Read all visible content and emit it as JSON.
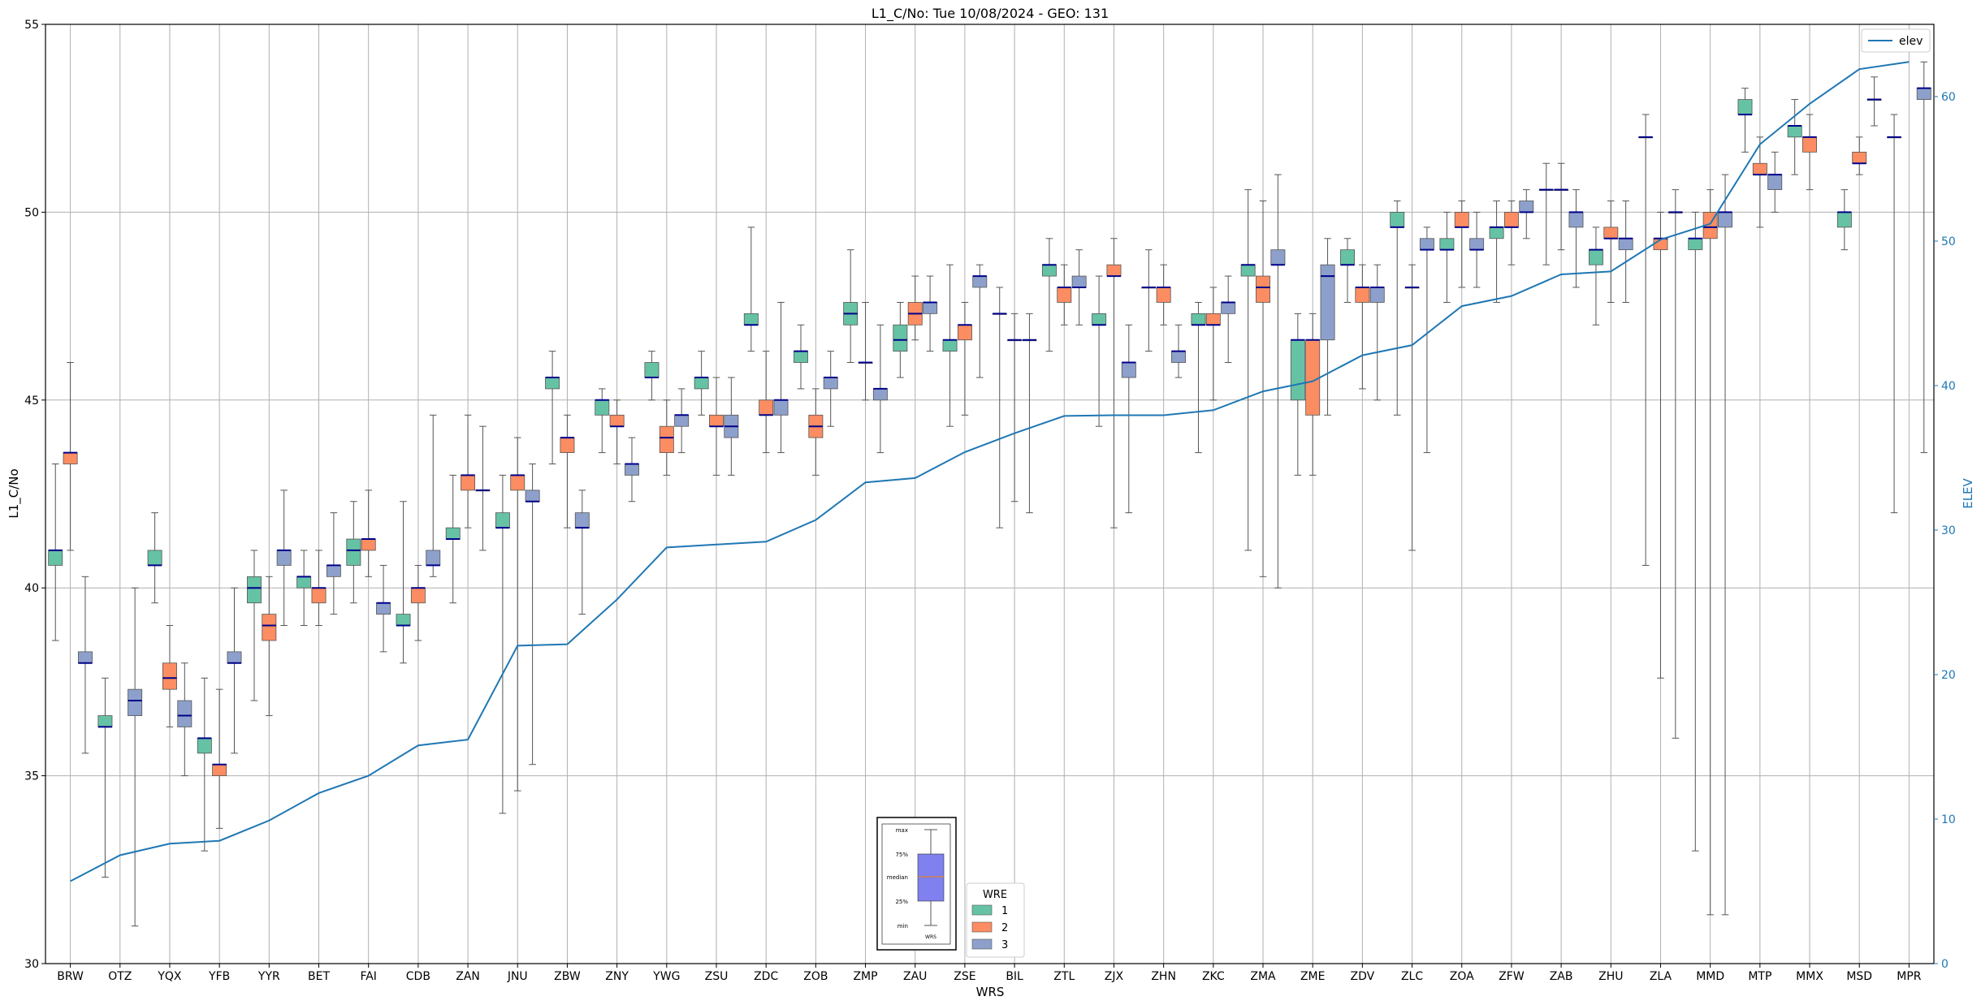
{
  "chart_data": {
    "type": "box",
    "title": "L1_C/No: Tue 10/08/2024 - GEO: 131",
    "xlabel": "WRS",
    "ylabel": "L1_C/No",
    "y2label": "ELEV",
    "ylim": [
      30,
      55
    ],
    "y2lim": [
      0,
      65
    ],
    "yticks": [
      "30",
      "35",
      "40",
      "45",
      "50",
      "55"
    ],
    "y2ticks": [
      "0",
      "10",
      "20",
      "30",
      "40",
      "50",
      "60"
    ],
    "grid": true,
    "colors": {
      "1": "#66c2a5",
      "2": "#fc8d62",
      "3": "#8da0cb",
      "elev": "#1f77b4",
      "median": "#00008b"
    },
    "categories": [
      "BRW",
      "OTZ",
      "YQX",
      "YFB",
      "YYR",
      "BET",
      "FAI",
      "CDB",
      "ZAN",
      "JNU",
      "ZBW",
      "ZNY",
      "YWG",
      "ZSU",
      "ZDC",
      "ZOB",
      "ZMP",
      "ZAU",
      "ZSE",
      "BIL",
      "ZTL",
      "ZJX",
      "ZHN",
      "ZKC",
      "ZMA",
      "ZME",
      "ZDV",
      "ZLC",
      "ZOA",
      "ZFW",
      "ZAB",
      "ZHU",
      "ZLA",
      "MMD",
      "MTP",
      "MMX",
      "MSD",
      "MPR"
    ],
    "elev_legend": "elev",
    "elev": [
      5.7,
      7.5,
      8.3,
      8.5,
      9.9,
      11.8,
      13.0,
      15.1,
      15.5,
      22.0,
      22.1,
      25.2,
      28.8,
      29.0,
      29.2,
      30.7,
      33.3,
      33.6,
      35.4,
      36.7,
      37.9,
      37.95,
      37.95,
      38.3,
      39.6,
      40.3,
      42.1,
      42.8,
      45.5,
      46.2,
      47.7,
      47.9,
      50.1,
      51.2,
      56.7,
      59.5,
      61.9,
      62.4
    ],
    "legend": {
      "title": "WRE",
      "entries": [
        "1",
        "2",
        "3"
      ]
    },
    "inset_legend": {
      "labels": [
        "max",
        "75%",
        "median",
        "25%",
        "min"
      ],
      "xlabel": "WRS"
    },
    "boxes": [
      {
        "cat": "BRW",
        "wre": "1",
        "min": 38.6,
        "q1": 40.6,
        "med": 41.0,
        "q3": 41.0,
        "max": 43.3
      },
      {
        "cat": "BRW",
        "wre": "2",
        "min": 41.0,
        "q1": 43.3,
        "med": 43.6,
        "q3": 43.6,
        "max": 46.0
      },
      {
        "cat": "BRW",
        "wre": "3",
        "min": 35.6,
        "q1": 38.0,
        "med": 38.0,
        "q3": 38.3,
        "max": 40.3
      },
      {
        "cat": "OTZ",
        "wre": "1",
        "min": 32.3,
        "q1": 36.3,
        "med": 36.3,
        "q3": 36.6,
        "max": 37.6
      },
      {
        "cat": "OTZ",
        "wre": "3",
        "min": 31.0,
        "q1": 36.6,
        "med": 37.0,
        "q3": 37.3,
        "max": 40.0
      },
      {
        "cat": "YQX",
        "wre": "1",
        "min": 39.6,
        "q1": 40.6,
        "med": 40.6,
        "q3": 41.0,
        "max": 42.0
      },
      {
        "cat": "YQX",
        "wre": "2",
        "min": 36.3,
        "q1": 37.3,
        "med": 37.6,
        "q3": 38.0,
        "max": 39.0
      },
      {
        "cat": "YQX",
        "wre": "3",
        "min": 35.0,
        "q1": 36.3,
        "med": 36.6,
        "q3": 37.0,
        "max": 38.0
      },
      {
        "cat": "YFB",
        "wre": "1",
        "min": 33.0,
        "q1": 35.6,
        "med": 36.0,
        "q3": 36.0,
        "max": 37.6
      },
      {
        "cat": "YFB",
        "wre": "2",
        "min": 33.6,
        "q1": 35.0,
        "med": 35.3,
        "q3": 35.3,
        "max": 37.3
      },
      {
        "cat": "YFB",
        "wre": "3",
        "min": 35.6,
        "q1": 38.0,
        "med": 38.0,
        "q3": 38.3,
        "max": 40.0
      },
      {
        "cat": "YYR",
        "wre": "1",
        "min": 37.0,
        "q1": 39.6,
        "med": 40.0,
        "q3": 40.3,
        "max": 41.0
      },
      {
        "cat": "YYR",
        "wre": "2",
        "min": 36.6,
        "q1": 38.6,
        "med": 39.0,
        "q3": 39.3,
        "max": 40.3
      },
      {
        "cat": "YYR",
        "wre": "3",
        "min": 39.0,
        "q1": 40.6,
        "med": 41.0,
        "q3": 41.0,
        "max": 42.6
      },
      {
        "cat": "BET",
        "wre": "1",
        "min": 39.0,
        "q1": 40.0,
        "med": 40.3,
        "q3": 40.3,
        "max": 41.0
      },
      {
        "cat": "BET",
        "wre": "2",
        "min": 39.0,
        "q1": 39.6,
        "med": 40.0,
        "q3": 40.0,
        "max": 41.0
      },
      {
        "cat": "BET",
        "wre": "3",
        "min": 39.3,
        "q1": 40.3,
        "med": 40.6,
        "q3": 40.6,
        "max": 42.0
      },
      {
        "cat": "FAI",
        "wre": "1",
        "min": 39.6,
        "q1": 40.6,
        "med": 41.0,
        "q3": 41.3,
        "max": 42.3
      },
      {
        "cat": "FAI",
        "wre": "2",
        "min": 40.3,
        "q1": 41.0,
        "med": 41.3,
        "q3": 41.3,
        "max": 42.6
      },
      {
        "cat": "FAI",
        "wre": "3",
        "min": 38.3,
        "q1": 39.3,
        "med": 39.6,
        "q3": 39.6,
        "max": 40.6
      },
      {
        "cat": "CDB",
        "wre": "1",
        "min": 38.0,
        "q1": 39.0,
        "med": 39.0,
        "q3": 39.3,
        "max": 42.3
      },
      {
        "cat": "CDB",
        "wre": "2",
        "min": 38.6,
        "q1": 39.6,
        "med": 40.0,
        "q3": 40.0,
        "max": 40.6
      },
      {
        "cat": "CDB",
        "wre": "3",
        "min": 40.3,
        "q1": 40.6,
        "med": 40.6,
        "q3": 41.0,
        "max": 44.6
      },
      {
        "cat": "ZAN",
        "wre": "1",
        "min": 39.6,
        "q1": 41.3,
        "med": 41.3,
        "q3": 41.6,
        "max": 43.0
      },
      {
        "cat": "ZAN",
        "wre": "2",
        "min": 41.6,
        "q1": 42.6,
        "med": 43.0,
        "q3": 43.0,
        "max": 44.6
      },
      {
        "cat": "ZAN",
        "wre": "3",
        "min": 41.0,
        "q1": 42.6,
        "med": 42.6,
        "q3": 42.6,
        "max": 44.3
      },
      {
        "cat": "JNU",
        "wre": "1",
        "min": 34.0,
        "q1": 41.6,
        "med": 41.6,
        "q3": 42.0,
        "max": 43.0
      },
      {
        "cat": "JNU",
        "wre": "2",
        "min": 34.6,
        "q1": 42.6,
        "med": 43.0,
        "q3": 43.0,
        "max": 44.0
      },
      {
        "cat": "JNU",
        "wre": "3",
        "min": 35.3,
        "q1": 42.3,
        "med": 42.3,
        "q3": 42.6,
        "max": 43.3
      },
      {
        "cat": "ZBW",
        "wre": "1",
        "min": 43.3,
        "q1": 45.3,
        "med": 45.6,
        "q3": 45.6,
        "max": 46.3
      },
      {
        "cat": "ZBW",
        "wre": "2",
        "min": 41.6,
        "q1": 43.6,
        "med": 44.0,
        "q3": 44.0,
        "max": 44.6
      },
      {
        "cat": "ZBW",
        "wre": "3",
        "min": 39.3,
        "q1": 41.6,
        "med": 41.6,
        "q3": 42.0,
        "max": 42.6
      },
      {
        "cat": "ZNY",
        "wre": "1",
        "min": 43.6,
        "q1": 44.6,
        "med": 45.0,
        "q3": 45.0,
        "max": 45.3
      },
      {
        "cat": "ZNY",
        "wre": "2",
        "min": 43.3,
        "q1": 44.3,
        "med": 44.3,
        "q3": 44.6,
        "max": 45.0
      },
      {
        "cat": "ZNY",
        "wre": "3",
        "min": 42.3,
        "q1": 43.0,
        "med": 43.3,
        "q3": 43.3,
        "max": 44.0
      },
      {
        "cat": "YWG",
        "wre": "1",
        "min": 45.0,
        "q1": 45.6,
        "med": 45.6,
        "q3": 46.0,
        "max": 46.3
      },
      {
        "cat": "YWG",
        "wre": "2",
        "min": 43.0,
        "q1": 43.6,
        "med": 44.0,
        "q3": 44.3,
        "max": 45.0
      },
      {
        "cat": "YWG",
        "wre": "3",
        "min": 43.6,
        "q1": 44.3,
        "med": 44.6,
        "q3": 44.6,
        "max": 45.3
      },
      {
        "cat": "ZSU",
        "wre": "1",
        "min": 44.6,
        "q1": 45.3,
        "med": 45.6,
        "q3": 45.6,
        "max": 46.3
      },
      {
        "cat": "ZSU",
        "wre": "2",
        "min": 43.0,
        "q1": 44.3,
        "med": 44.3,
        "q3": 44.6,
        "max": 45.6
      },
      {
        "cat": "ZSU",
        "wre": "3",
        "min": 43.0,
        "q1": 44.0,
        "med": 44.3,
        "q3": 44.6,
        "max": 45.6
      },
      {
        "cat": "ZDC",
        "wre": "1",
        "min": 46.3,
        "q1": 47.0,
        "med": 47.0,
        "q3": 47.3,
        "max": 49.6
      },
      {
        "cat": "ZDC",
        "wre": "2",
        "min": 43.6,
        "q1": 44.6,
        "med": 44.6,
        "q3": 45.0,
        "max": 46.3
      },
      {
        "cat": "ZDC",
        "wre": "3",
        "min": 43.6,
        "q1": 44.6,
        "med": 45.0,
        "q3": 45.0,
        "max": 47.6
      },
      {
        "cat": "ZOB",
        "wre": "1",
        "min": 45.3,
        "q1": 46.0,
        "med": 46.3,
        "q3": 46.3,
        "max": 47.0
      },
      {
        "cat": "ZOB",
        "wre": "2",
        "min": 43.0,
        "q1": 44.0,
        "med": 44.3,
        "q3": 44.6,
        "max": 45.3
      },
      {
        "cat": "ZOB",
        "wre": "3",
        "min": 44.3,
        "q1": 45.3,
        "med": 45.6,
        "q3": 45.6,
        "max": 46.3
      },
      {
        "cat": "ZMP",
        "wre": "1",
        "min": 46.0,
        "q1": 47.0,
        "med": 47.3,
        "q3": 47.6,
        "max": 49.0
      },
      {
        "cat": "ZMP",
        "wre": "2",
        "min": 45.0,
        "q1": 46.0,
        "med": 46.0,
        "q3": 46.0,
        "max": 47.6
      },
      {
        "cat": "ZMP",
        "wre": "3",
        "min": 43.6,
        "q1": 45.0,
        "med": 45.3,
        "q3": 45.3,
        "max": 47.0
      },
      {
        "cat": "ZAU",
        "wre": "1",
        "min": 45.6,
        "q1": 46.3,
        "med": 46.6,
        "q3": 47.0,
        "max": 47.6
      },
      {
        "cat": "ZAU",
        "wre": "2",
        "min": 46.6,
        "q1": 47.0,
        "med": 47.3,
        "q3": 47.6,
        "max": 48.3
      },
      {
        "cat": "ZAU",
        "wre": "3",
        "min": 46.3,
        "q1": 47.3,
        "med": 47.6,
        "q3": 47.6,
        "max": 48.3
      },
      {
        "cat": "ZSE",
        "wre": "1",
        "min": 44.3,
        "q1": 46.3,
        "med": 46.6,
        "q3": 46.6,
        "max": 48.6
      },
      {
        "cat": "ZSE",
        "wre": "2",
        "min": 44.6,
        "q1": 46.6,
        "med": 47.0,
        "q3": 47.0,
        "max": 47.6
      },
      {
        "cat": "ZSE",
        "wre": "3",
        "min": 45.6,
        "q1": 48.0,
        "med": 48.3,
        "q3": 48.3,
        "max": 48.6
      },
      {
        "cat": "BIL",
        "wre": "1",
        "min": 41.6,
        "q1": 47.3,
        "med": 47.3,
        "q3": 47.3,
        "max": 48.0
      },
      {
        "cat": "BIL",
        "wre": "2",
        "min": 42.3,
        "q1": 46.6,
        "med": 46.6,
        "q3": 46.6,
        "max": 47.3
      },
      {
        "cat": "BIL",
        "wre": "3",
        "min": 42.0,
        "q1": 46.6,
        "med": 46.6,
        "q3": 46.6,
        "max": 47.3
      },
      {
        "cat": "ZTL",
        "wre": "1",
        "min": 46.3,
        "q1": 48.3,
        "med": 48.6,
        "q3": 48.6,
        "max": 49.3
      },
      {
        "cat": "ZTL",
        "wre": "2",
        "min": 47.0,
        "q1": 47.6,
        "med": 48.0,
        "q3": 48.0,
        "max": 48.6
      },
      {
        "cat": "ZTL",
        "wre": "3",
        "min": 47.0,
        "q1": 48.0,
        "med": 48.0,
        "q3": 48.3,
        "max": 49.0
      },
      {
        "cat": "ZJX",
        "wre": "1",
        "min": 44.3,
        "q1": 47.0,
        "med": 47.0,
        "q3": 47.3,
        "max": 48.3
      },
      {
        "cat": "ZJX",
        "wre": "2",
        "min": 41.6,
        "q1": 48.3,
        "med": 48.3,
        "q3": 48.6,
        "max": 49.3
      },
      {
        "cat": "ZJX",
        "wre": "3",
        "min": 42.0,
        "q1": 45.6,
        "med": 46.0,
        "q3": 46.0,
        "max": 47.0
      },
      {
        "cat": "ZHN",
        "wre": "1",
        "min": 46.3,
        "q1": 48.0,
        "med": 48.0,
        "q3": 48.0,
        "max": 49.0
      },
      {
        "cat": "ZHN",
        "wre": "2",
        "min": 47.0,
        "q1": 47.6,
        "med": 48.0,
        "q3": 48.0,
        "max": 48.6
      },
      {
        "cat": "ZHN",
        "wre": "3",
        "min": 45.6,
        "q1": 46.0,
        "med": 46.3,
        "q3": 46.3,
        "max": 47.0
      },
      {
        "cat": "ZKC",
        "wre": "1",
        "min": 43.6,
        "q1": 47.0,
        "med": 47.0,
        "q3": 47.3,
        "max": 47.6
      },
      {
        "cat": "ZKC",
        "wre": "2",
        "min": 45.0,
        "q1": 47.0,
        "med": 47.0,
        "q3": 47.3,
        "max": 48.0
      },
      {
        "cat": "ZKC",
        "wre": "3",
        "min": 46.0,
        "q1": 47.3,
        "med": 47.6,
        "q3": 47.6,
        "max": 48.3
      },
      {
        "cat": "ZMA",
        "wre": "1",
        "min": 41.0,
        "q1": 48.3,
        "med": 48.6,
        "q3": 48.6,
        "max": 50.6
      },
      {
        "cat": "ZMA",
        "wre": "2",
        "min": 40.3,
        "q1": 47.6,
        "med": 48.0,
        "q3": 48.3,
        "max": 50.3
      },
      {
        "cat": "ZMA",
        "wre": "3",
        "min": 40.0,
        "q1": 48.6,
        "med": 48.6,
        "q3": 49.0,
        "max": 51.0
      },
      {
        "cat": "ZME",
        "wre": "1",
        "min": 43.0,
        "q1": 45.0,
        "med": 46.6,
        "q3": 46.6,
        "max": 47.3
      },
      {
        "cat": "ZME",
        "wre": "2",
        "min": 43.0,
        "q1": 44.6,
        "med": 46.6,
        "q3": 46.6,
        "max": 47.3
      },
      {
        "cat": "ZME",
        "wre": "3",
        "min": 44.6,
        "q1": 46.6,
        "med": 48.3,
        "q3": 48.6,
        "max": 49.3
      },
      {
        "cat": "ZDV",
        "wre": "1",
        "min": 47.6,
        "q1": 48.6,
        "med": 48.6,
        "q3": 49.0,
        "max": 49.3
      },
      {
        "cat": "ZDV",
        "wre": "2",
        "min": 45.3,
        "q1": 47.6,
        "med": 48.0,
        "q3": 48.0,
        "max": 48.6
      },
      {
        "cat": "ZDV",
        "wre": "3",
        "min": 45.0,
        "q1": 47.6,
        "med": 48.0,
        "q3": 48.0,
        "max": 48.6
      },
      {
        "cat": "ZLC",
        "wre": "1",
        "min": 44.6,
        "q1": 49.6,
        "med": 49.6,
        "q3": 50.0,
        "max": 50.3
      },
      {
        "cat": "ZLC",
        "wre": "2",
        "min": 41.0,
        "q1": 48.0,
        "med": 48.0,
        "q3": 48.0,
        "max": 48.6
      },
      {
        "cat": "ZLC",
        "wre": "3",
        "min": 43.6,
        "q1": 49.0,
        "med": 49.0,
        "q3": 49.3,
        "max": 49.6
      },
      {
        "cat": "ZOA",
        "wre": "1",
        "min": 47.6,
        "q1": 49.0,
        "med": 49.0,
        "q3": 49.3,
        "max": 50.0
      },
      {
        "cat": "ZOA",
        "wre": "2",
        "min": 48.0,
        "q1": 49.6,
        "med": 49.6,
        "q3": 50.0,
        "max": 50.3
      },
      {
        "cat": "ZOA",
        "wre": "3",
        "min": 48.0,
        "q1": 49.0,
        "med": 49.0,
        "q3": 49.3,
        "max": 50.0
      },
      {
        "cat": "ZFW",
        "wre": "1",
        "min": 47.6,
        "q1": 49.3,
        "med": 49.6,
        "q3": 49.6,
        "max": 50.3
      },
      {
        "cat": "ZFW",
        "wre": "2",
        "min": 48.6,
        "q1": 49.6,
        "med": 49.6,
        "q3": 50.0,
        "max": 50.3
      },
      {
        "cat": "ZFW",
        "wre": "3",
        "min": 49.3,
        "q1": 50.0,
        "med": 50.0,
        "q3": 50.3,
        "max": 50.6
      },
      {
        "cat": "ZAB",
        "wre": "1",
        "min": 48.6,
        "q1": 50.6,
        "med": 50.6,
        "q3": 50.6,
        "max": 51.3
      },
      {
        "cat": "ZAB",
        "wre": "2",
        "min": 49.0,
        "q1": 50.6,
        "med": 50.6,
        "q3": 50.6,
        "max": 51.3
      },
      {
        "cat": "ZAB",
        "wre": "3",
        "min": 48.0,
        "q1": 49.6,
        "med": 50.0,
        "q3": 50.0,
        "max": 50.6
      },
      {
        "cat": "ZHU",
        "wre": "1",
        "min": 47.0,
        "q1": 48.6,
        "med": 49.0,
        "q3": 49.0,
        "max": 49.6
      },
      {
        "cat": "ZHU",
        "wre": "2",
        "min": 47.6,
        "q1": 49.3,
        "med": 49.3,
        "q3": 49.6,
        "max": 50.3
      },
      {
        "cat": "ZHU",
        "wre": "3",
        "min": 47.6,
        "q1": 49.0,
        "med": 49.3,
        "q3": 49.3,
        "max": 50.3
      },
      {
        "cat": "ZLA",
        "wre": "1",
        "min": 40.6,
        "q1": 52.0,
        "med": 52.0,
        "q3": 52.0,
        "max": 52.6
      },
      {
        "cat": "ZLA",
        "wre": "2",
        "min": 37.6,
        "q1": 49.0,
        "med": 49.3,
        "q3": 49.3,
        "max": 50.0
      },
      {
        "cat": "ZLA",
        "wre": "3",
        "min": 36.0,
        "q1": 50.0,
        "med": 50.0,
        "q3": 50.0,
        "max": 50.6
      },
      {
        "cat": "MMD",
        "wre": "1",
        "min": 33.0,
        "q1": 49.0,
        "med": 49.3,
        "q3": 49.3,
        "max": 50.0
      },
      {
        "cat": "MMD",
        "wre": "2",
        "min": 31.3,
        "q1": 49.3,
        "med": 49.6,
        "q3": 50.0,
        "max": 50.6
      },
      {
        "cat": "MMD",
        "wre": "3",
        "min": 31.3,
        "q1": 49.6,
        "med": 50.0,
        "q3": 50.0,
        "max": 51.0
      },
      {
        "cat": "MTP",
        "wre": "1",
        "min": 51.6,
        "q1": 52.6,
        "med": 52.6,
        "q3": 53.0,
        "max": 53.3
      },
      {
        "cat": "MTP",
        "wre": "2",
        "min": 49.6,
        "q1": 51.0,
        "med": 51.0,
        "q3": 51.3,
        "max": 52.0
      },
      {
        "cat": "MTP",
        "wre": "3",
        "min": 50.0,
        "q1": 50.6,
        "med": 51.0,
        "q3": 51.0,
        "max": 51.6
      },
      {
        "cat": "MMX",
        "wre": "1",
        "min": 51.0,
        "q1": 52.0,
        "med": 52.3,
        "q3": 52.3,
        "max": 53.0
      },
      {
        "cat": "MMX",
        "wre": "2",
        "min": 50.6,
        "q1": 51.6,
        "med": 52.0,
        "q3": 52.0,
        "max": 52.6
      },
      {
        "cat": "MSD",
        "wre": "1",
        "min": 49.0,
        "q1": 49.6,
        "med": 50.0,
        "q3": 50.0,
        "max": 50.6
      },
      {
        "cat": "MSD",
        "wre": "2",
        "min": 51.0,
        "q1": 51.3,
        "med": 51.3,
        "q3": 51.6,
        "max": 52.0
      },
      {
        "cat": "MSD",
        "wre": "3",
        "min": 52.3,
        "q1": 53.0,
        "med": 53.0,
        "q3": 53.0,
        "max": 53.6
      },
      {
        "cat": "MPR",
        "wre": "1",
        "min": 42.0,
        "q1": 52.0,
        "med": 52.0,
        "q3": 52.0,
        "max": 52.6
      },
      {
        "cat": "MPR",
        "wre": "3",
        "min": 43.6,
        "q1": 53.0,
        "med": 53.3,
        "q3": 53.3,
        "max": 54.0
      }
    ]
  }
}
